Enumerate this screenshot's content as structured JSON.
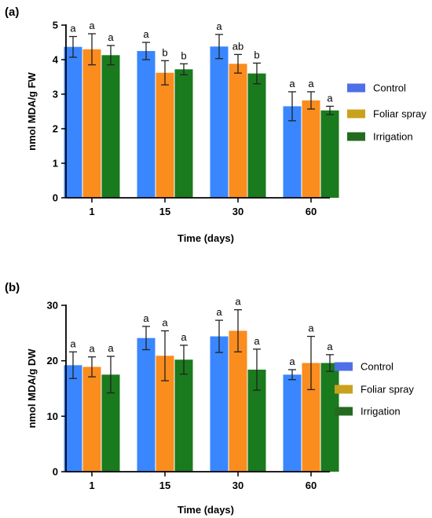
{
  "colors": {
    "Control": "#3a86ff",
    "Foliar spray": "#fb8c1e",
    "Irrigation": "#1a7a1e",
    "legend_Control": "#4f6fe8",
    "legend_Foliar spray": "#c8a21c",
    "legend_Irrigation": "#236b1f"
  },
  "chart_data": [
    {
      "type": "bar",
      "panel_label": "(a)",
      "categories": [
        "1",
        "15",
        "30",
        "60"
      ],
      "xlabel": "Time (days)",
      "ylabel": "nmol MDA/g FW",
      "ylim": [
        0,
        5
      ],
      "yticks": [
        "0",
        "1",
        "2",
        "3",
        "4",
        "5"
      ],
      "legend_position": "right",
      "series": [
        {
          "name": "Control",
          "values": [
            4.37,
            4.25,
            4.38,
            2.65
          ],
          "errors": [
            0.3,
            0.25,
            0.35,
            0.42
          ],
          "labels": [
            "a",
            "a",
            "a",
            "a"
          ]
        },
        {
          "name": "Foliar spray",
          "values": [
            4.3,
            3.62,
            3.88,
            2.82
          ],
          "errors": [
            0.45,
            0.35,
            0.27,
            0.25
          ],
          "labels": [
            "a",
            "b",
            "ab",
            "a"
          ]
        },
        {
          "name": "Irrigation",
          "values": [
            4.13,
            3.72,
            3.6,
            2.53
          ],
          "errors": [
            0.28,
            0.16,
            0.3,
            0.12
          ],
          "labels": [
            "a",
            "b",
            "b",
            "a"
          ]
        }
      ]
    },
    {
      "type": "bar",
      "panel_label": "(b)",
      "categories": [
        "1",
        "15",
        "30",
        "60"
      ],
      "xlabel": "Time (days)",
      "ylabel": "nmol MDA/g DW",
      "ylim": [
        0,
        30
      ],
      "yticks": [
        "0",
        "10",
        "20",
        "30"
      ],
      "legend_position": "right",
      "series": [
        {
          "name": "Control",
          "values": [
            19.2,
            24.1,
            24.4,
            17.5
          ],
          "errors": [
            2.4,
            2.1,
            2.9,
            0.9
          ],
          "labels": [
            "a",
            "a",
            "a",
            "a"
          ]
        },
        {
          "name": "Foliar spray",
          "values": [
            18.9,
            20.9,
            25.4,
            19.6
          ],
          "errors": [
            1.8,
            4.5,
            3.8,
            4.8
          ],
          "labels": [
            "a",
            "a",
            "a",
            "a"
          ]
        },
        {
          "name": "Irrigation",
          "values": [
            17.5,
            20.2,
            18.4,
            19.6
          ],
          "errors": [
            3.3,
            2.6,
            3.7,
            1.5
          ],
          "labels": [
            "a",
            "a",
            "a",
            "a"
          ]
        }
      ]
    }
  ]
}
